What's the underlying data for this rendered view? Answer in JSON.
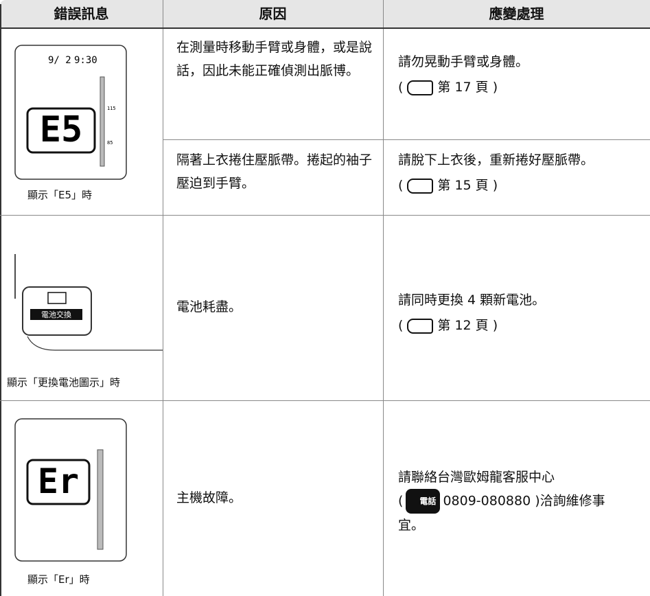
{
  "header": {
    "col1": "錯誤訊息",
    "col2": "原因",
    "col3": "應變處理"
  },
  "rows": [
    {
      "display": {
        "date": "9/ 2",
        "time": "9:30",
        "code": "E5",
        "scale_high": "115",
        "scale_low": "85"
      },
      "caption": "顯示「E5」時",
      "cases": [
        {
          "cause": "在測量時移動手臂或身體，或是說話，因此未能正確偵測出脈博。",
          "remedy": "請勿晃動手臂或身體。",
          "ref_open": "(",
          "ref_page": "第 17 頁",
          "ref_close": ")"
        },
        {
          "cause": "隔著上衣捲住壓脈帶。捲起的袖子壓迫到手臂。",
          "remedy": "請脫下上衣後，重新捲好壓脈帶。",
          "ref_open": "(",
          "ref_page": "第 15 頁",
          "ref_close": ")"
        }
      ]
    },
    {
      "display": {
        "icon_label": "電池交換"
      },
      "caption": "顯示「更換電池圖示」時",
      "cases": [
        {
          "cause": "電池耗盡。",
          "remedy": "請同時更換 4 顆新電池。",
          "ref_open": "(",
          "ref_page": "第 12 頁",
          "ref_close": ")"
        }
      ]
    },
    {
      "display": {
        "code": "Er"
      },
      "caption": "顯示「Er」時",
      "cases": [
        {
          "cause": "主機故障。",
          "remedy": "請聯絡台灣歐姆龍客服中心",
          "contact_open": "(",
          "contact_icon": "電話",
          "contact_text": "0809-080880 )洽詢維修事宜。"
        }
      ]
    }
  ]
}
